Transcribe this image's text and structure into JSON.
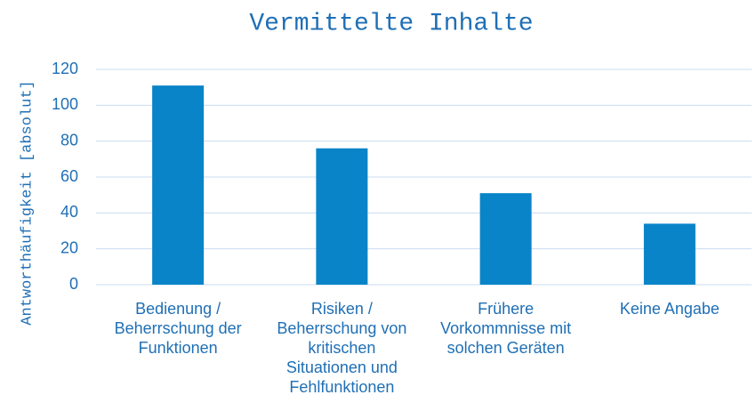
{
  "chart_data": {
    "type": "bar",
    "title": "Vermittelte Inhalte",
    "y_label": "Antworthäufigkeit [absolut]",
    "categories": [
      "Bedienung / Beherrschung der Funktionen",
      "Risiken / Beherrschung von kritischen Situationen und Fehlfunktionen",
      "Frühere Vorkommnisse mit solchen Geräten",
      "Keine Angabe"
    ],
    "values": [
      111,
      76,
      51,
      34
    ],
    "color": "#0a84c8",
    "ylim": [
      0,
      120
    ],
    "yticks": [
      0,
      20,
      40,
      60,
      80,
      100,
      120
    ],
    "grid": true
  }
}
